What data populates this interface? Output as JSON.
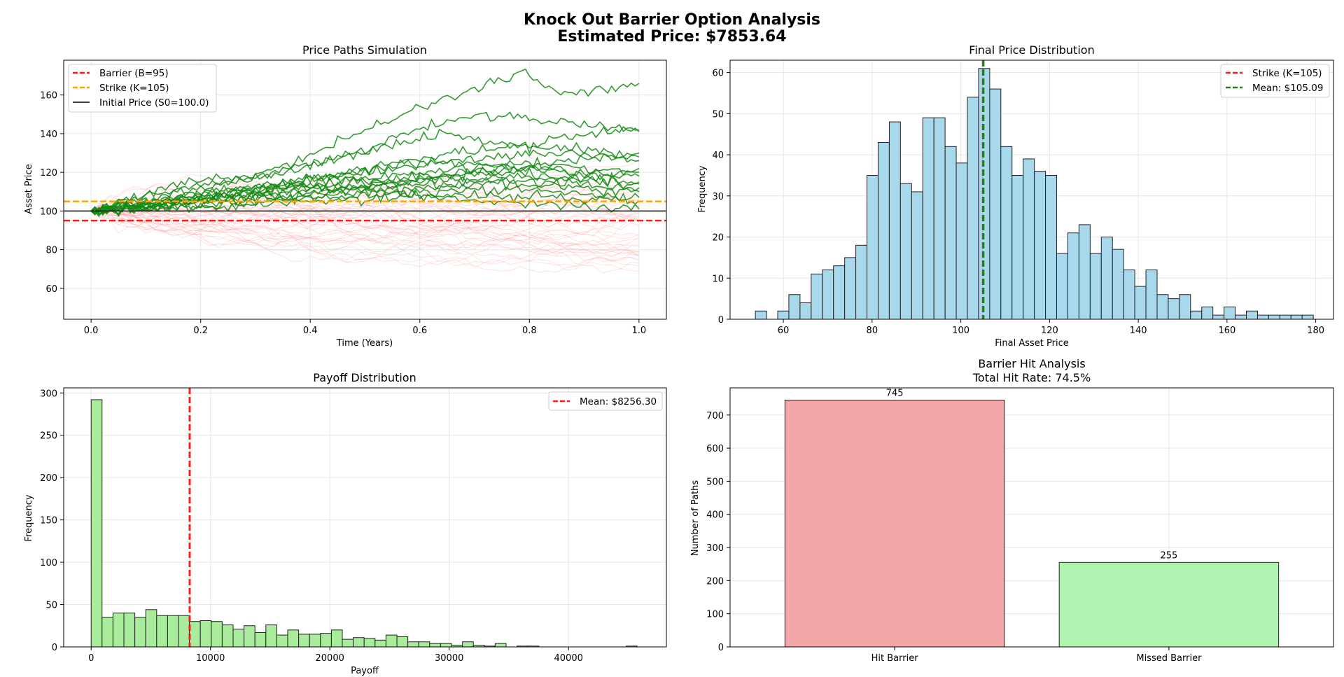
{
  "suptitle": {
    "line1": "Knock Out Barrier Option Analysis",
    "line2": "Estimated Price: $7853.64"
  },
  "colors": {
    "barrier": "#ff1a1a",
    "strike": "#ffa500",
    "initial": "#000000",
    "survivor_path": "#138a13",
    "knocked_path": "#ff9999",
    "hist_blue": "#a8d8ec",
    "hist_green": "#a8ec9c",
    "mean_green": "#118811",
    "bar_hit": "#f2a6a8",
    "bar_missed": "#b0f2b0"
  },
  "chart_data": [
    {
      "id": "paths",
      "type": "line",
      "title": "Price Paths Simulation",
      "xlabel": "Time (Years)",
      "ylabel": "Asset Price",
      "xlim": [
        -0.05,
        1.05
      ],
      "ylim": [
        44,
        178
      ],
      "xticks": [
        0.0,
        0.2,
        0.4,
        0.6,
        0.8,
        1.0
      ],
      "xticklabels": [
        "0.0",
        "0.2",
        "0.4",
        "0.6",
        "0.8",
        "1.0"
      ],
      "yticks": [
        60,
        80,
        100,
        120,
        140,
        160
      ],
      "grid": true,
      "legend_position": "upper-left",
      "barrier": 95,
      "strike": 105,
      "initial_price": 100.0,
      "legend": [
        "Barrier (B=95)",
        "Strike (K=105)",
        "Initial Price (S0=100.0)"
      ],
      "series": [
        {
          "values": [
            100,
            106,
            113,
            116,
            118,
            124,
            133,
            142,
            150,
            158,
            165,
            172,
            160,
            163,
            166
          ]
        },
        {
          "values": [
            100,
            104,
            108,
            112,
            116,
            120,
            126,
            132,
            140,
            146,
            150,
            148,
            146,
            144,
            142
          ]
        },
        {
          "values": [
            100,
            105,
            110,
            114,
            118,
            122,
            126,
            130,
            136,
            140,
            136,
            134,
            138,
            140,
            141
          ]
        },
        {
          "values": [
            100,
            103,
            106,
            108,
            111,
            114,
            118,
            122,
            126,
            130,
            132,
            134,
            133,
            130,
            128
          ]
        },
        {
          "values": [
            100,
            104,
            107,
            110,
            112,
            115,
            118,
            121,
            124,
            125,
            127,
            129,
            130,
            128,
            126
          ]
        },
        {
          "values": [
            100,
            102,
            105,
            108,
            110,
            112,
            114,
            117,
            119,
            121,
            123,
            125,
            124,
            121,
            120
          ]
        },
        {
          "values": [
            100,
            103,
            104,
            107,
            109,
            111,
            112,
            115,
            117,
            119,
            120,
            122,
            121,
            119,
            118
          ]
        },
        {
          "values": [
            100,
            101,
            104,
            106,
            108,
            110,
            111,
            113,
            115,
            116,
            117,
            118,
            117,
            116,
            115
          ]
        },
        {
          "values": [
            100,
            102,
            103,
            105,
            107,
            108,
            110,
            112,
            113,
            114,
            115,
            116,
            115,
            113,
            112
          ]
        },
        {
          "values": [
            100,
            101,
            102,
            104,
            106,
            107,
            108,
            110,
            112,
            113,
            114,
            114,
            113,
            111,
            110
          ]
        },
        {
          "values": [
            100,
            100,
            102,
            103,
            104,
            106,
            107,
            108,
            110,
            110,
            111,
            112,
            110,
            108,
            107
          ]
        },
        {
          "values": [
            100,
            101,
            101,
            102,
            103,
            104,
            105,
            106,
            107,
            108,
            108,
            108,
            107,
            106,
            105
          ]
        },
        {
          "values": [
            100,
            102,
            104,
            107,
            110,
            114,
            118,
            116,
            114,
            117,
            120,
            123,
            126,
            128,
            130
          ]
        },
        {
          "values": [
            100,
            101,
            103,
            105,
            106,
            108,
            110,
            112,
            109,
            107,
            105,
            104,
            103,
            102,
            101
          ]
        },
        {
          "values": [
            100,
            103,
            106,
            110,
            112,
            114,
            113,
            112,
            115,
            118,
            121,
            120,
            118,
            116,
            114
          ]
        },
        {
          "values": [
            100,
            102,
            104,
            106,
            108,
            112,
            116,
            120,
            123,
            125,
            124,
            122,
            120,
            118,
            122
          ]
        }
      ]
    },
    {
      "id": "final",
      "type": "bar",
      "title": "Final Price Distribution",
      "xlabel": "Final Asset Price",
      "ylabel": "Frequency",
      "xlim": [
        48,
        184
      ],
      "ylim": [
        0,
        63
      ],
      "xticks": [
        60,
        80,
        100,
        120,
        140,
        160,
        180
      ],
      "yticks": [
        0,
        10,
        20,
        30,
        40,
        50,
        60
      ],
      "grid": true,
      "legend_position": "upper-right",
      "bin_start": 53.7,
      "bin_width": 2.515,
      "values": [
        2,
        0,
        2,
        6,
        4,
        11,
        12,
        13,
        15,
        18,
        35,
        43,
        48,
        33,
        31,
        49,
        49,
        42,
        38,
        54,
        61,
        56,
        42,
        35,
        39,
        36,
        35,
        16,
        21,
        23,
        16,
        20,
        17,
        12,
        8,
        12,
        6,
        5,
        6,
        2,
        3,
        1,
        3,
        1,
        2,
        1,
        1,
        1,
        1,
        1
      ],
      "strike": 105,
      "mean": 105.09,
      "legend": [
        "Strike (K=105)",
        "Mean: $105.09"
      ]
    },
    {
      "id": "payoff",
      "type": "bar",
      "title": "Payoff Distribution",
      "xlabel": "Payoff",
      "ylabel": "Frequency",
      "xlim": [
        -2300,
        48200
      ],
      "ylim": [
        0,
        306
      ],
      "xticks": [
        0,
        10000,
        20000,
        30000,
        40000
      ],
      "yticks": [
        0,
        50,
        100,
        150,
        200,
        250,
        300
      ],
      "grid": true,
      "legend_position": "upper-right",
      "bin_start": 0,
      "bin_width": 915,
      "values": [
        292,
        35,
        40,
        40,
        35,
        44,
        37,
        37,
        37,
        30,
        31,
        30,
        26,
        21,
        25,
        17,
        26,
        14,
        20,
        15,
        15,
        16,
        20,
        9,
        11,
        10,
        8,
        14,
        12,
        6,
        6,
        4,
        4,
        2,
        6,
        2,
        1,
        4,
        0,
        1,
        1,
        0,
        0,
        0,
        0,
        0,
        0,
        0,
        0,
        1
      ],
      "mean": 8256.3,
      "legend": [
        "Mean: $8256.30"
      ]
    },
    {
      "id": "barrier_hits",
      "type": "bar",
      "title": "Barrier Hit Analysis",
      "subtitle": "Total Hit Rate: 74.5%",
      "xlabel": "",
      "ylabel": "Number of Paths",
      "categories": [
        "Hit Barrier",
        "Missed Barrier"
      ],
      "values": [
        745,
        255
      ],
      "value_labels": [
        "745",
        "255"
      ],
      "xlim": [
        -0.6,
        1.6
      ],
      "ylim": [
        0,
        782
      ],
      "yticks": [
        0,
        100,
        200,
        300,
        400,
        500,
        600,
        700
      ],
      "grid": true
    }
  ]
}
